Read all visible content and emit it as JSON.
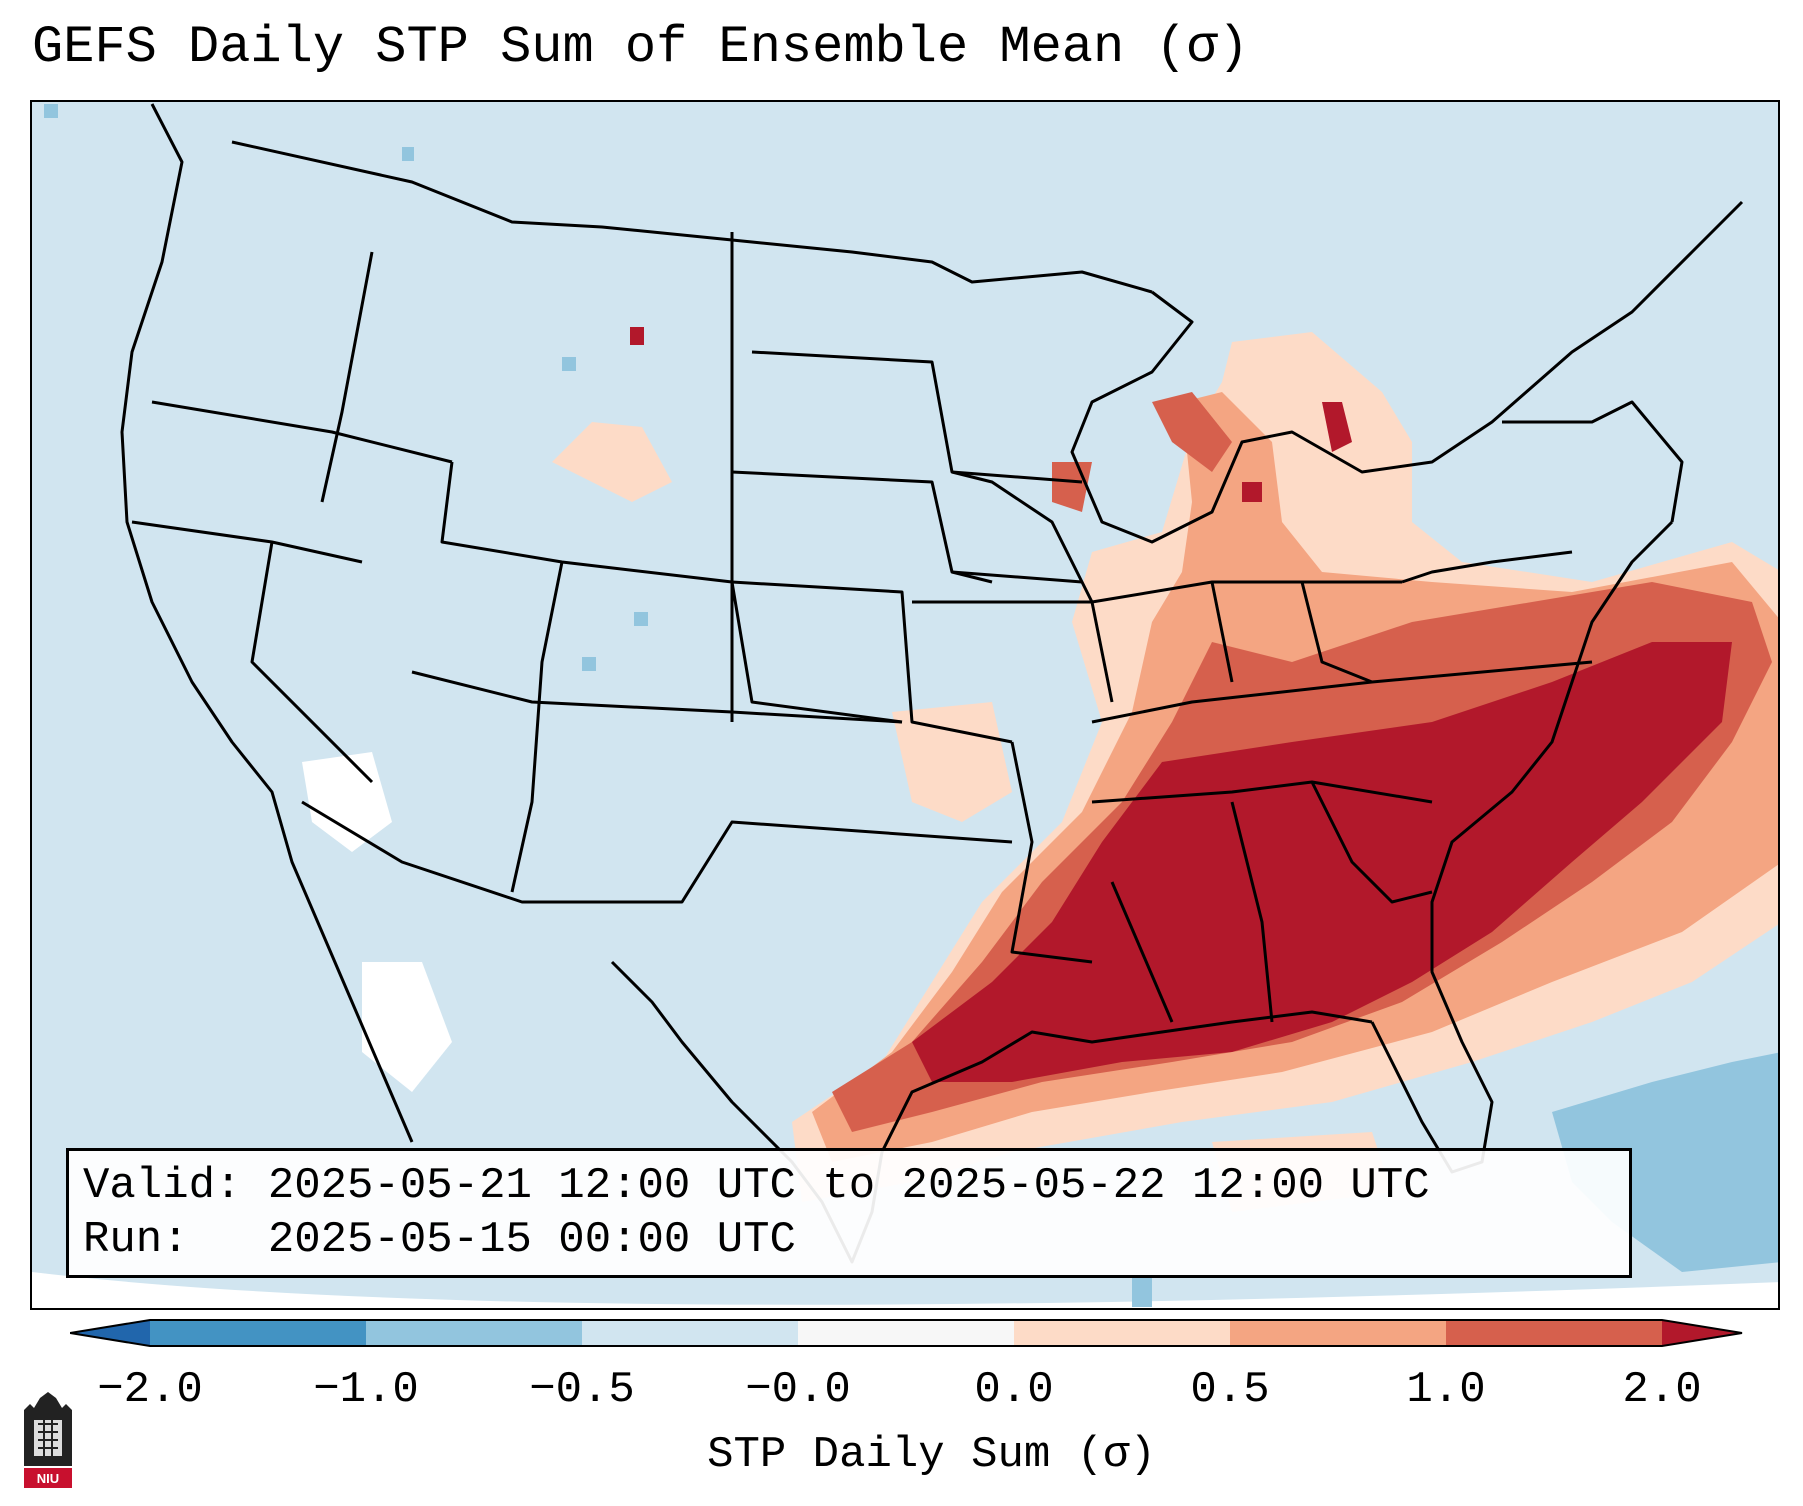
{
  "title": "GEFS Daily STP Sum of Ensemble Mean (σ)",
  "info": {
    "valid_label": "Valid:",
    "valid_value": "2025-05-21 12:00 UTC to 2025-05-22 12:00 UTC",
    "run_label": "Run:",
    "run_value": "2025-05-15 00:00 UTC"
  },
  "colorbar": {
    "label": "STP Daily Sum (σ)",
    "tick_labels": [
      "−2.0",
      "−1.0",
      "−0.5",
      "−0.0",
      "0.0",
      "0.5",
      "1.0",
      "2.0"
    ],
    "colors": [
      "#2166ac",
      "#4393c3",
      "#92c5de",
      "#d1e5f0",
      "#f7f7f7",
      "#fddbc7",
      "#f4a582",
      "#d6604d",
      "#b2182b"
    ]
  },
  "logo": {
    "text": "NIU"
  },
  "map": {
    "background_color": "#d1e5f0",
    "anomaly_regions": [
      {
        "name": "southeast-core",
        "level": "above 2.0"
      },
      {
        "name": "ohio-valley",
        "level": "1.0 to 2.0"
      },
      {
        "name": "great-lakes",
        "level": "0.0 to 0.5"
      },
      {
        "name": "caribbean",
        "level": "-1.0 to -0.5"
      }
    ]
  }
}
